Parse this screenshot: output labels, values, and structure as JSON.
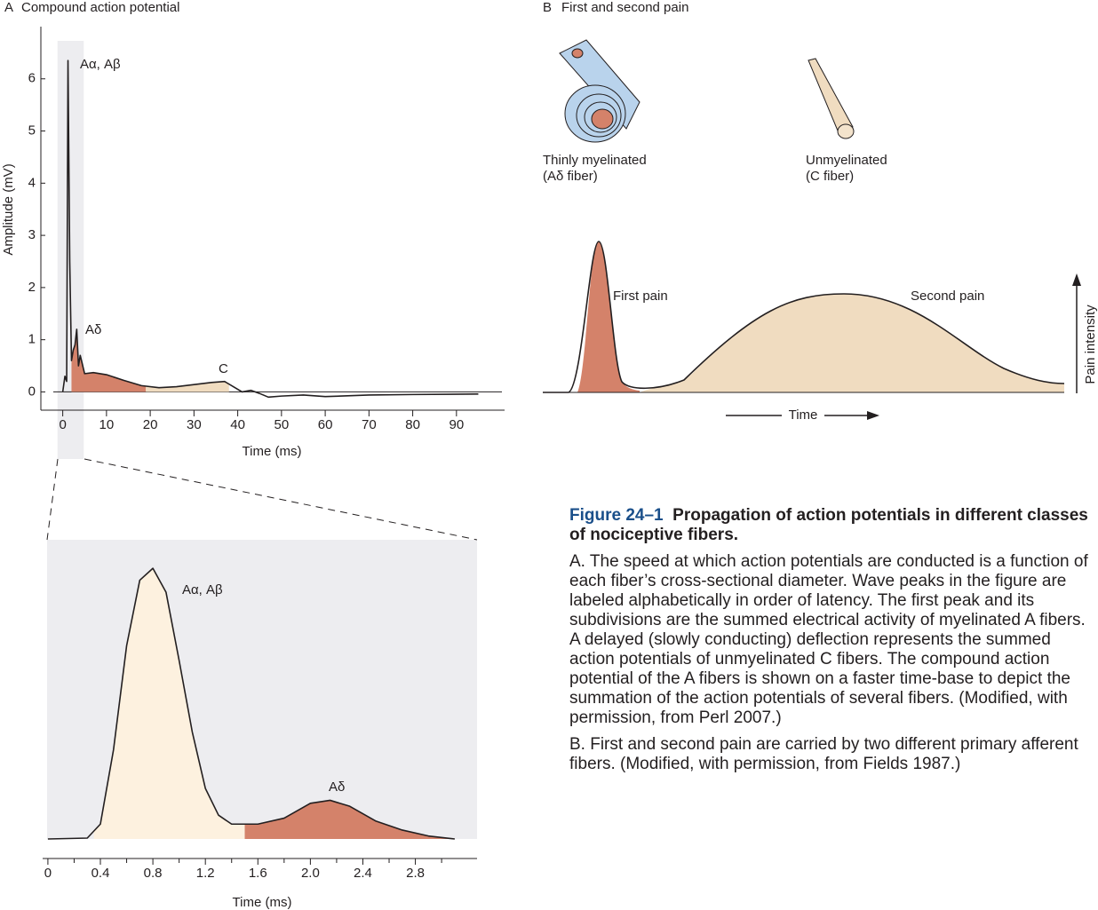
{
  "chart_data": [
    {
      "type": "line",
      "panel": "A",
      "title": "Compound action potential",
      "x_label": "Time (ms)",
      "y_label": "Amplitude (mV)",
      "x": [
        0,
        0.5,
        0.9,
        1.2,
        1.6,
        2.0,
        2.4,
        2.8,
        3.2,
        3.6,
        4.0,
        5,
        7,
        10,
        14,
        18,
        22,
        26,
        30,
        34,
        37,
        39,
        41,
        43,
        45,
        47,
        50,
        55,
        60,
        70,
        80,
        95
      ],
      "values": [
        0,
        0.3,
        0.2,
        6.35,
        2.5,
        0.6,
        0.8,
        0.9,
        1.2,
        0.5,
        0.7,
        0.35,
        0.37,
        0.33,
        0.22,
        0.12,
        0.08,
        0.1,
        0.14,
        0.18,
        0.2,
        0.1,
        0,
        0.03,
        -0.03,
        -0.1,
        -0.08,
        -0.06,
        -0.09,
        -0.06,
        -0.05,
        -0.04
      ],
      "color": "#231f20",
      "xlim": [
        -5,
        101
      ],
      "ylim": [
        -0.35,
        7
      ],
      "xticks": [
        0,
        10,
        20,
        30,
        40,
        50,
        60,
        70,
        80,
        90
      ],
      "yticks": [
        0,
        1,
        2,
        3,
        4,
        5,
        6
      ],
      "zero_line": true,
      "highlight": [
        -1.2,
        4.8
      ],
      "areas": [
        {
          "x": [
            2,
            19
          ],
          "color": "#d4826a"
        },
        {
          "x": [
            19,
            38
          ],
          "color": "#f0dcc0"
        }
      ],
      "annotations": [
        "Aα, Aβ",
        "Aδ",
        "C"
      ]
    },
    {
      "type": "line",
      "x_label": "Time (ms)",
      "x": [
        0,
        0.3,
        0.4,
        0.5,
        0.6,
        0.7,
        0.8,
        0.9,
        1.0,
        1.1,
        1.2,
        1.3,
        1.4,
        1.6,
        1.8,
        2.0,
        2.15,
        2.3,
        2.5,
        2.7,
        2.9,
        3.1
      ],
      "values": [
        0,
        0.003,
        0.05,
        0.3,
        0.65,
        0.87,
        0.91,
        0.83,
        0.6,
        0.36,
        0.17,
        0.08,
        0.05,
        0.05,
        0.07,
        0.12,
        0.13,
        0.11,
        0.06,
        0.03,
        0.01,
        0
      ],
      "color": "#231f20",
      "xlim": [
        -0.04,
        3.27
      ],
      "ylim": [
        0,
        1
      ],
      "xticks": [
        0,
        0.4,
        0.8,
        1.2,
        1.6,
        {
          "value": 2,
          "label": "2.0"
        },
        2.4,
        2.8
      ],
      "xminor": [
        0.2,
        0.6,
        1.0,
        1.4,
        1.8,
        2.2,
        2.6,
        3.0
      ],
      "areas": [
        {
          "x": [
            0.35,
            1.5
          ],
          "color": "#fdf1df"
        },
        {
          "x": [
            1.5,
            3.1
          ],
          "color": "#d4826a"
        }
      ],
      "annotations": [
        "Aα, Aβ",
        "Aδ"
      ]
    }
  ],
  "panel_b": {
    "panel": "B",
    "title": "First and second pain",
    "fiber_1": [
      "Thinly myelinated",
      "(Aδ fiber)"
    ],
    "fiber_2": [
      "Unmyelinated",
      "(C fiber)"
    ],
    "first": "First pain",
    "second": "Second pain",
    "y_label": "Pain intensity",
    "x_label": "Time"
  },
  "caption": {
    "number": "Figure 24–1",
    "title": "Propagation of action potentials in different classes of nociceptive fibers.",
    "a_label": "A.",
    "a_text": "The speed at which action potentials are conducted is a function of each fiber’s cross-sectional diameter. Wave peaks in the figure are labeled alphabetically in order of latency. The first peak and its subdivisions are the summed electrical activity of myelinated A fibers. A delayed (slowly conducting) deflection represents the summed action potentials of unmyelinated C fibers. The compound action potential of the A fibers is shown on a faster time-base to depict the summation of the action potentials of several fibers. (Modified, with permission, from Perl 2007.)",
    "b_label": "B.",
    "b_text": "First and second pain are carried by two different primary afferent fibers. (Modified, with permission, from Fields 1987.)"
  }
}
